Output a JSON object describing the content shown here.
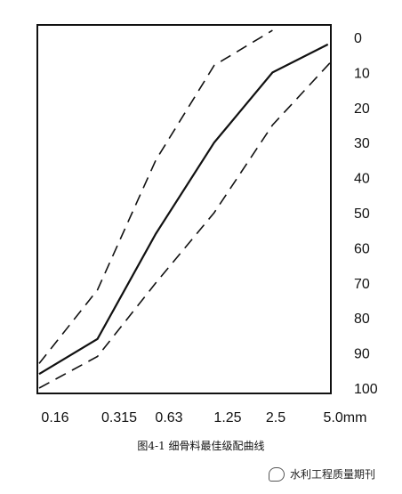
{
  "chart_data": {
    "type": "line",
    "caption": "图4-1 细骨料最佳级配曲线",
    "x_categories": [
      "0.16",
      "0.315",
      "0.63",
      "1.25",
      "2.5",
      "5.0mm"
    ],
    "y_ticks": [
      0,
      10,
      20,
      30,
      40,
      50,
      60,
      70,
      80,
      90,
      100
    ],
    "y_axis": {
      "inverted": true,
      "range": [
        0,
        100
      ],
      "position": "right"
    },
    "grid": false,
    "series": [
      {
        "style": "solid",
        "points": [
          [
            0.0,
            96
          ],
          [
            1.0,
            86
          ],
          [
            2.0,
            56
          ],
          [
            3.0,
            30
          ],
          [
            4.0,
            10
          ],
          [
            4.95,
            2
          ]
        ]
      },
      {
        "style": "dashed",
        "points": [
          [
            0.0,
            93
          ],
          [
            1.0,
            72
          ],
          [
            2.0,
            35
          ],
          [
            3.0,
            8
          ],
          [
            4.0,
            -2
          ]
        ]
      },
      {
        "style": "dashed",
        "points": [
          [
            0.0,
            100
          ],
          [
            1.0,
            91
          ],
          [
            2.0,
            70
          ],
          [
            3.0,
            50
          ],
          [
            4.0,
            25
          ],
          [
            5.0,
            7
          ]
        ]
      }
    ]
  },
  "watermark": {
    "text": "水利工程质量期刊",
    "icon": "wechat-icon"
  }
}
